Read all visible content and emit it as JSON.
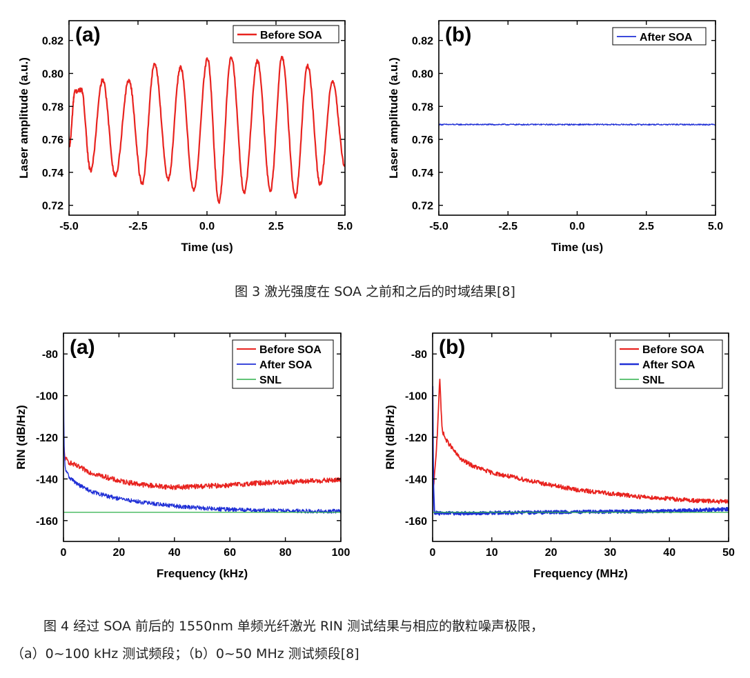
{
  "captions": {
    "fig3": "图 3 激光强度在 SOA 之前和之后的时域结果[8]",
    "fig4_line1": "图 4 经过 SOA 前后的 1550nm 单频光纤激光 RIN 测试结果与相应的散粒噪声极限，",
    "fig4_line2": "（a）0~100 kHz 测试频段；（b）0~50 MHz 测试频段[8]"
  },
  "chart_data": [
    {
      "id": "fig3a",
      "type": "line",
      "panel_label": "(a)",
      "xlabel": "Time (us)",
      "ylabel": "Laser amplitude (a.u.)",
      "xlim": [
        -5.0,
        5.0
      ],
      "ylim": [
        0.714,
        0.832
      ],
      "xticks": [
        -5.0,
        -2.5,
        0.0,
        2.5,
        5.0
      ],
      "xtick_labels": [
        "-5.0",
        "-2.5",
        "0.0",
        "2.5",
        "5.0"
      ],
      "yticks": [
        0.72,
        0.74,
        0.76,
        0.78,
        0.8,
        0.82
      ],
      "ytick_labels": [
        "0.72",
        "0.74",
        "0.76",
        "0.78",
        "0.80",
        "0.82"
      ],
      "legend_position": "top-right",
      "grid": false,
      "series": [
        {
          "name": "Before SOA",
          "color": "#e8231f",
          "x": [
            -5.0,
            -4.78,
            -4.55,
            -4.22,
            -3.78,
            -3.32,
            -2.83,
            -2.35,
            -1.9,
            -1.4,
            -0.96,
            -0.48,
            0.02,
            0.43,
            0.88,
            1.35,
            1.83,
            2.3,
            2.72,
            3.2,
            3.65,
            4.1,
            4.55,
            5.0
          ],
          "y": [
            0.755,
            0.789,
            0.79,
            0.741,
            0.796,
            0.738,
            0.796,
            0.733,
            0.806,
            0.736,
            0.804,
            0.729,
            0.809,
            0.722,
            0.81,
            0.728,
            0.808,
            0.729,
            0.81,
            0.725,
            0.805,
            0.733,
            0.795,
            0.744
          ]
        }
      ]
    },
    {
      "id": "fig3b",
      "type": "line",
      "panel_label": "(b)",
      "xlabel": "Time (us)",
      "ylabel": "Laser amplitude (a.u.)",
      "xlim": [
        -5.0,
        5.0
      ],
      "ylim": [
        0.714,
        0.832
      ],
      "xticks": [
        -5.0,
        -2.5,
        0.0,
        2.5,
        5.0
      ],
      "xtick_labels": [
        "-5.0",
        "-2.5",
        "0.0",
        "2.5",
        "5.0"
      ],
      "yticks": [
        0.72,
        0.74,
        0.76,
        0.78,
        0.8,
        0.82
      ],
      "ytick_labels": [
        "0.72",
        "0.74",
        "0.76",
        "0.78",
        "0.80",
        "0.82"
      ],
      "legend_position": "top-right",
      "grid": false,
      "series": [
        {
          "name": "After SOA",
          "color": "#1f2fd6",
          "x": [
            -5.0,
            5.0
          ],
          "y": [
            0.769,
            0.769
          ]
        }
      ]
    },
    {
      "id": "fig4a",
      "type": "line",
      "panel_label": "(a)",
      "xlabel": "Frequency (kHz)",
      "ylabel": "RIN (dB/Hz)",
      "xlim": [
        0,
        100
      ],
      "ylim": [
        -170,
        -70
      ],
      "xticks": [
        0,
        20,
        40,
        60,
        80,
        100
      ],
      "xtick_labels": [
        "0",
        "20",
        "40",
        "60",
        "80",
        "100"
      ],
      "yticks": [
        -80,
        -100,
        -120,
        -140,
        -160
      ],
      "ytick_labels": [
        "-80",
        "-100",
        "-120",
        "-140",
        "-160"
      ],
      "legend_position": "top-right",
      "grid": false,
      "series": [
        {
          "name": "Before SOA",
          "color": "#e8231f",
          "x": [
            0,
            0.5,
            2,
            5,
            10,
            15,
            20,
            30,
            40,
            50,
            60,
            70,
            80,
            90,
            100
          ],
          "y": [
            -122,
            -130,
            -132,
            -134,
            -137,
            -139,
            -141,
            -143,
            -144,
            -143.5,
            -143,
            -142,
            -141.5,
            -141,
            -140.5
          ]
        },
        {
          "name": "After SOA",
          "color": "#1f2fd6",
          "x": [
            0,
            0.2,
            0.6,
            2,
            5,
            10,
            15,
            20,
            30,
            40,
            50,
            60,
            70,
            80,
            90,
            100
          ],
          "y": [
            -80,
            -125,
            -135,
            -139,
            -142.5,
            -146,
            -148,
            -149.5,
            -151.5,
            -153,
            -154,
            -154.7,
            -155,
            -155.3,
            -155.5,
            -155.5
          ]
        },
        {
          "name": "SNL",
          "color": "#2db04a",
          "x": [
            0,
            100
          ],
          "y": [
            -156,
            -156
          ]
        }
      ]
    },
    {
      "id": "fig4b",
      "type": "line",
      "panel_label": "(b)",
      "xlabel": "Frequency (MHz)",
      "ylabel": "RIN (dB/Hz)",
      "xlim": [
        0,
        50
      ],
      "ylim": [
        -170,
        -70
      ],
      "xticks": [
        0,
        10,
        20,
        30,
        40,
        50
      ],
      "xtick_labels": [
        "0",
        "10",
        "20",
        "30",
        "40",
        "50"
      ],
      "yticks": [
        -80,
        -100,
        -120,
        -140,
        -160
      ],
      "ytick_labels": [
        "-80",
        "-100",
        "-120",
        "-140",
        "-160"
      ],
      "legend_position": "top-right",
      "grid": false,
      "series": [
        {
          "name": "Before SOA",
          "color": "#e8231f",
          "x": [
            0,
            0.2,
            0.5,
            0.8,
            1.0,
            1.2,
            1.4,
            1.6,
            1.8,
            2.2,
            3,
            4,
            5,
            7,
            10,
            15,
            20,
            25,
            30,
            35,
            40,
            45,
            50
          ],
          "y": [
            -150,
            -142,
            -132,
            -118,
            -105,
            -91,
            -105,
            -116,
            -118,
            -121,
            -124,
            -128,
            -131,
            -134,
            -137,
            -140,
            -143,
            -145.5,
            -147,
            -148.5,
            -149.5,
            -150.5,
            -151
          ]
        },
        {
          "name": "After SOA",
          "color": "#1f2fd6",
          "x": [
            0,
            0.1,
            0.3,
            1,
            5,
            10,
            20,
            30,
            40,
            45,
            50
          ],
          "y": [
            -96,
            -140,
            -156,
            -156.5,
            -156.5,
            -156.3,
            -156,
            -155.7,
            -155.4,
            -155,
            -154.5
          ]
        },
        {
          "name": "SNL",
          "color": "#2db04a",
          "x": [
            0,
            50
          ],
          "y": [
            -156,
            -156
          ]
        }
      ]
    }
  ]
}
